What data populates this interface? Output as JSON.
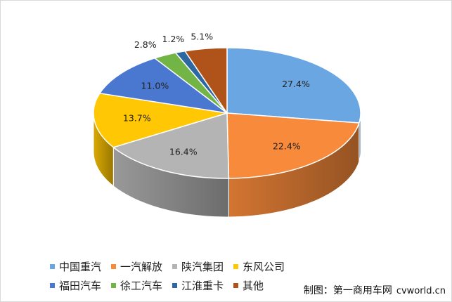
{
  "chart_data": {
    "type": "pie",
    "style": "3d",
    "categories": [
      "中国重汽",
      "一汽解放",
      "陕汽集团",
      "东风公司",
      "福田汽车",
      "徐工汽车",
      "江淮重卡",
      "其他"
    ],
    "values": [
      27.4,
      22.4,
      16.4,
      13.7,
      11.0,
      2.8,
      1.2,
      5.1
    ],
    "labels": [
      "27.4%",
      "22.4%",
      "16.4%",
      "13.7%",
      "11.0%",
      "2.8%",
      "1.2%",
      "5.1%"
    ],
    "colors": [
      "#6aa6e2",
      "#f88a3b",
      "#b4b4b4",
      "#ffc704",
      "#4a78d0",
      "#72b446",
      "#2e68a2",
      "#b0531a"
    ],
    "legend_position": "bottom"
  },
  "credit": {
    "text": "制图：第一商用车网",
    "site": "cvworld.cn"
  }
}
